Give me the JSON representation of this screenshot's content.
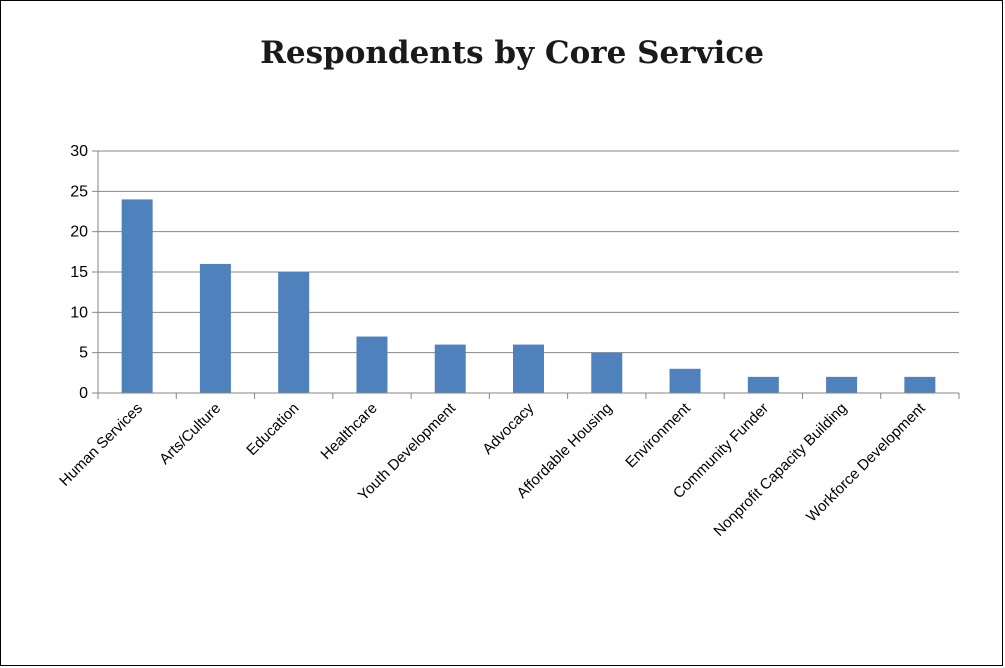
{
  "chart_data": {
    "type": "bar",
    "title": "Respondents by Core Service",
    "xlabel": "",
    "ylabel": "",
    "categories": [
      "Human Services",
      "Arts/Culture",
      "Education",
      "Healthcare",
      "Youth Development",
      "Advocacy",
      "Affordable Housing",
      "Environment",
      "Community Funder",
      "Nonprofit Capacity Building",
      "Workforce Development"
    ],
    "values": [
      24,
      16,
      15,
      7,
      6,
      6,
      5,
      3,
      2,
      2,
      2
    ],
    "ylim": [
      0,
      30
    ],
    "yticks": [
      "0",
      "5",
      "10",
      "15",
      "20",
      "25",
      "30"
    ],
    "grid": true,
    "legend": "none",
    "colors": {
      "bar": "#4f81bd",
      "grid": "#868686",
      "axis": "#868686"
    }
  }
}
